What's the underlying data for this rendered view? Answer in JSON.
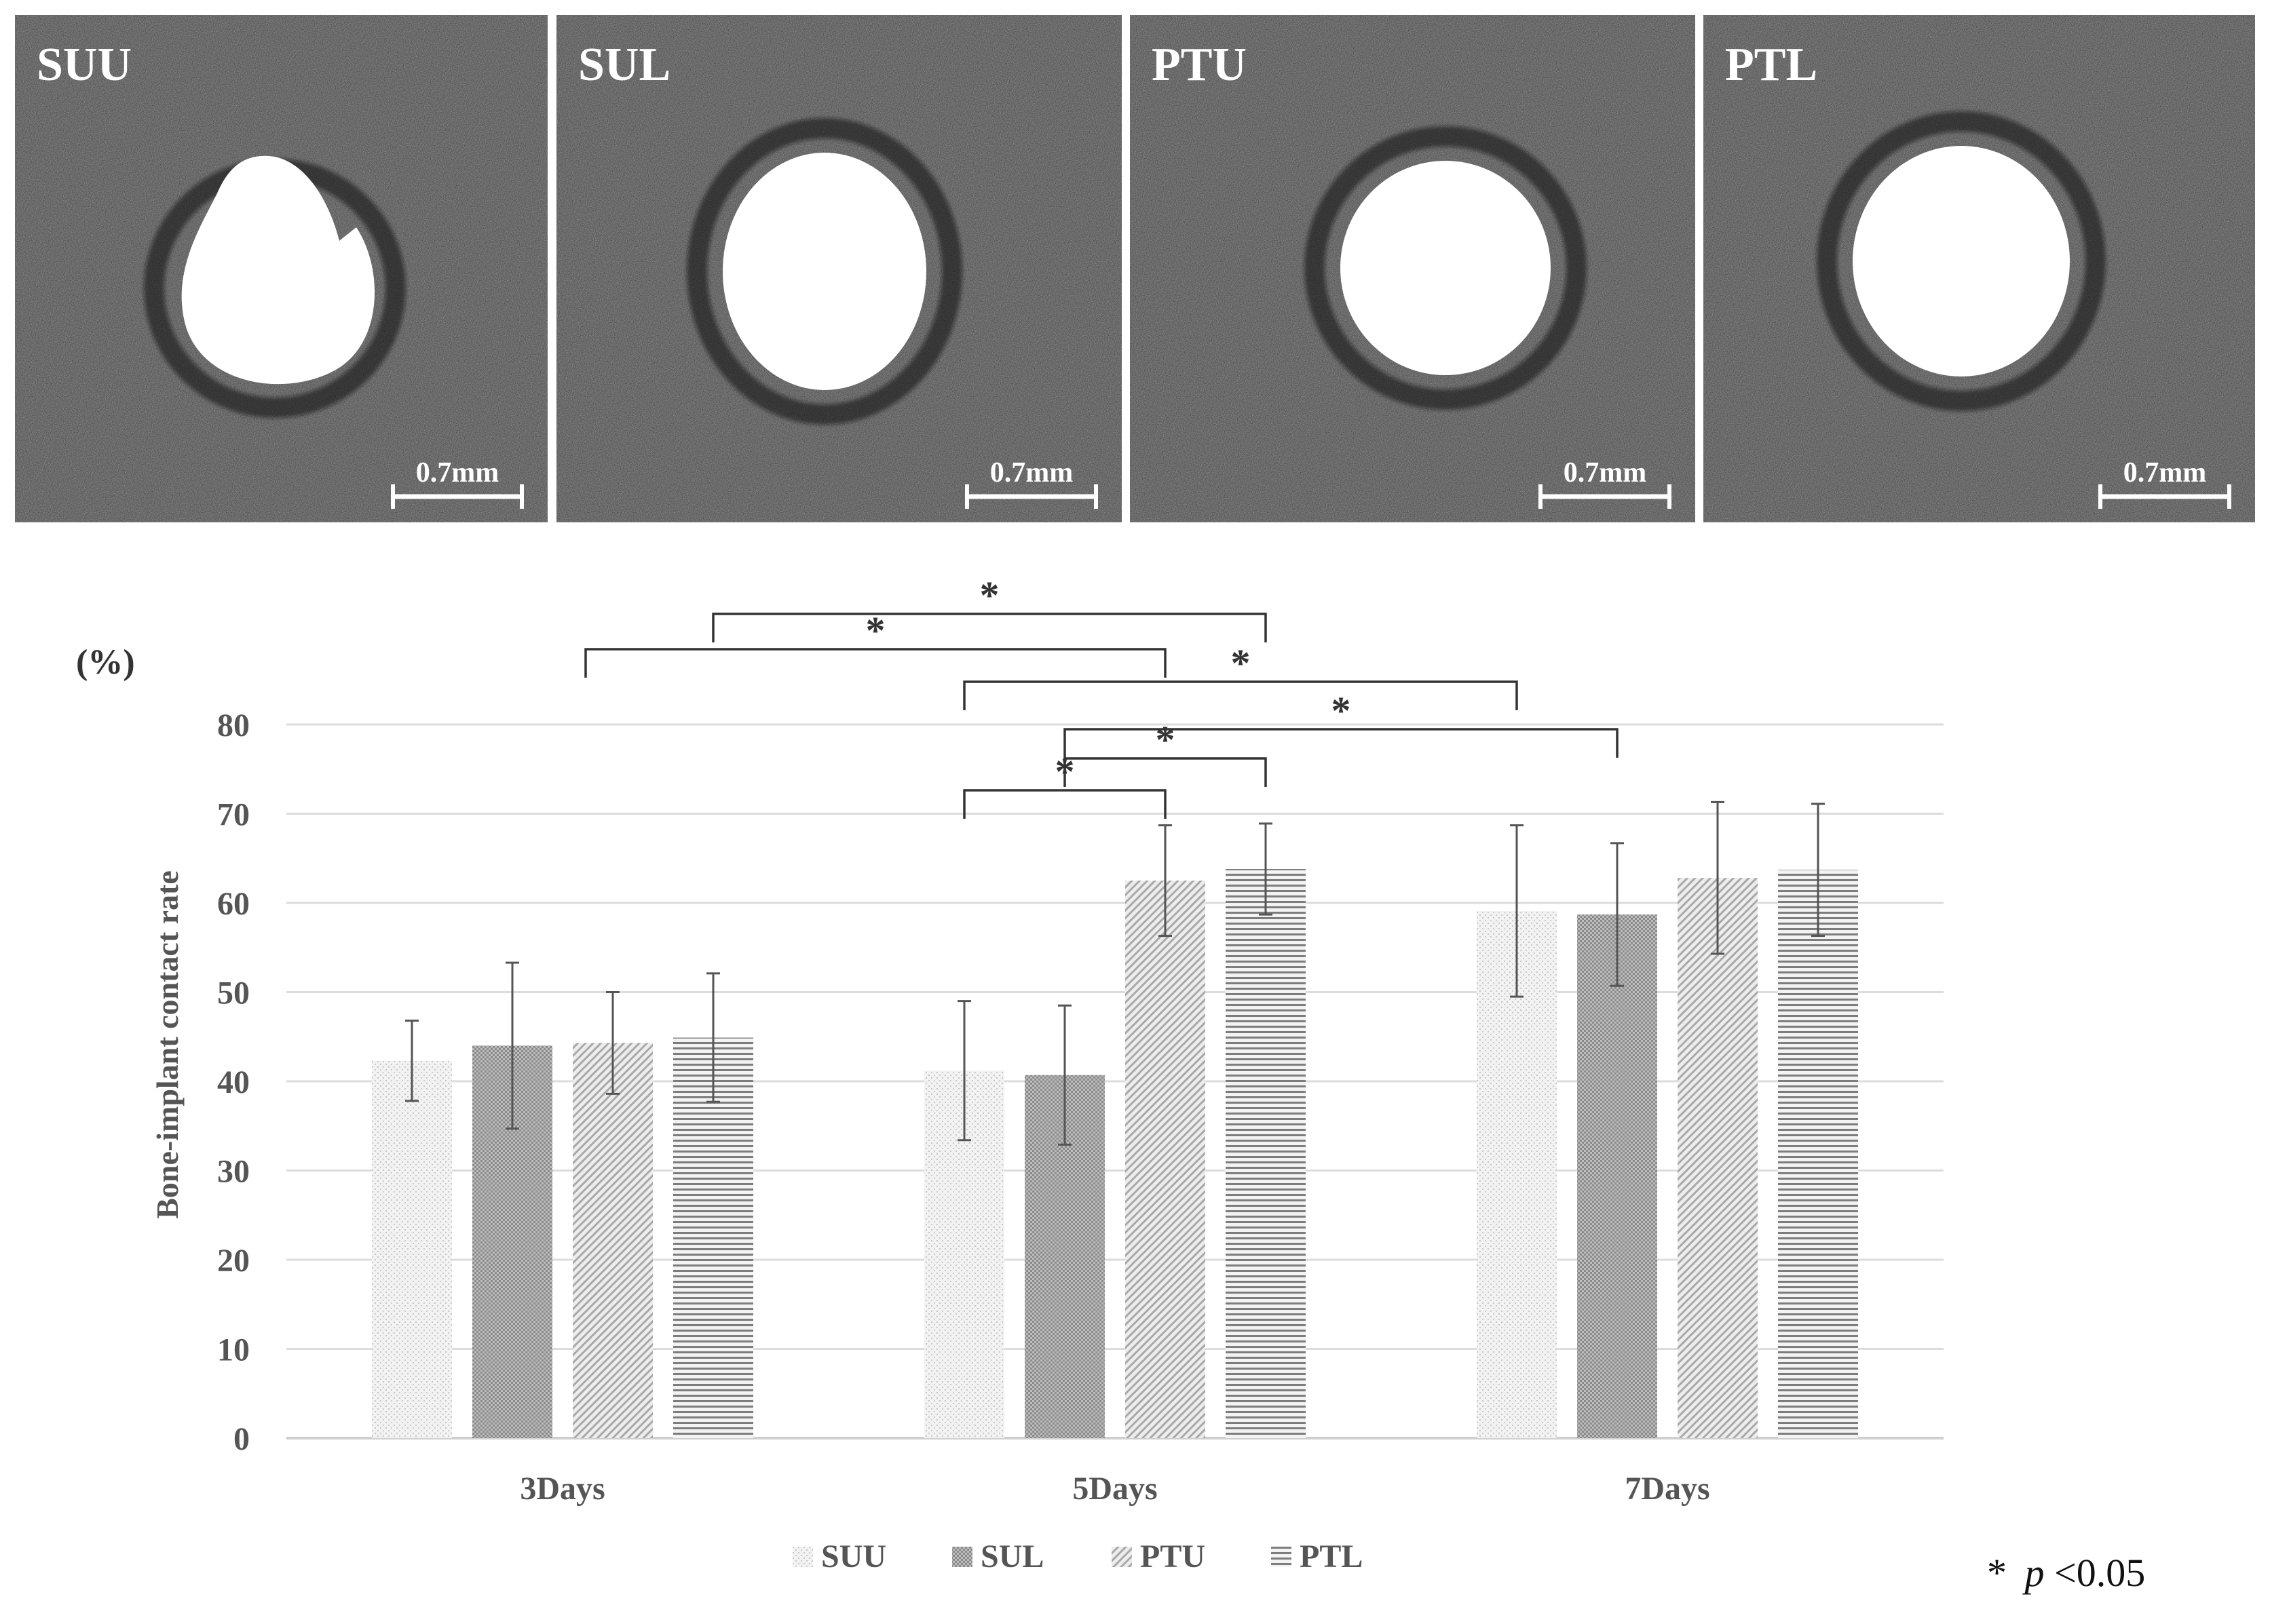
{
  "panels": [
    {
      "label": "SUU",
      "scale_text": "0.7mm",
      "hole": "notched"
    },
    {
      "label": "SUL",
      "scale_text": "0.7mm",
      "hole": "round"
    },
    {
      "label": "PTU",
      "scale_text": "0.7mm",
      "hole": "round"
    },
    {
      "label": "PTL",
      "scale_text": "0.7mm",
      "hole": "round"
    }
  ],
  "significance_note": {
    "star": "*",
    "p": "p",
    "rest": "<0.05"
  },
  "chart_data": {
    "type": "bar",
    "title": "",
    "xlabel": "",
    "ylabel": "Bone-implant contact rate",
    "y_unit": "(%)",
    "ylim": [
      0,
      80
    ],
    "yticks": [
      0,
      10,
      20,
      30,
      40,
      50,
      60,
      70,
      80
    ],
    "grid": true,
    "legend_position": "bottom",
    "categories": [
      "3Days",
      "5Days",
      "7Days"
    ],
    "series": [
      {
        "name": "SUU",
        "pattern": "light-dots",
        "color": "#e3e3e3",
        "values": [
          42.3,
          41.2,
          59.1
        ],
        "errors": [
          4.5,
          7.8,
          9.6
        ]
      },
      {
        "name": "SUL",
        "pattern": "dark-checker",
        "color": "#9a9a9a",
        "values": [
          44.0,
          40.7,
          58.7
        ],
        "errors": [
          9.3,
          7.8,
          8.0
        ]
      },
      {
        "name": "PTU",
        "pattern": "diagonal",
        "color": "#bdbdbd",
        "values": [
          44.3,
          62.5,
          62.8
        ],
        "errors": [
          5.7,
          6.2,
          8.5
        ]
      },
      {
        "name": "PTL",
        "pattern": "horizontal",
        "color": "#7a7a7a",
        "values": [
          44.9,
          63.8,
          63.7
        ],
        "errors": [
          7.2,
          5.1,
          7.4
        ]
      }
    ],
    "significance": [
      {
        "from": [
          0,
          3
        ],
        "to": [
          1,
          3
        ],
        "label": "*"
      },
      {
        "from": [
          0,
          2
        ],
        "to": [
          1,
          2
        ],
        "label": "*"
      },
      {
        "from": [
          1,
          0
        ],
        "to": [
          2,
          0
        ],
        "label": "*"
      },
      {
        "from": [
          1,
          1
        ],
        "to": [
          2,
          1
        ],
        "label": "*"
      },
      {
        "from": [
          1,
          1
        ],
        "to": [
          1,
          3
        ],
        "label": "*"
      },
      {
        "from": [
          1,
          0
        ],
        "to": [
          1,
          2
        ],
        "label": "*"
      }
    ]
  }
}
